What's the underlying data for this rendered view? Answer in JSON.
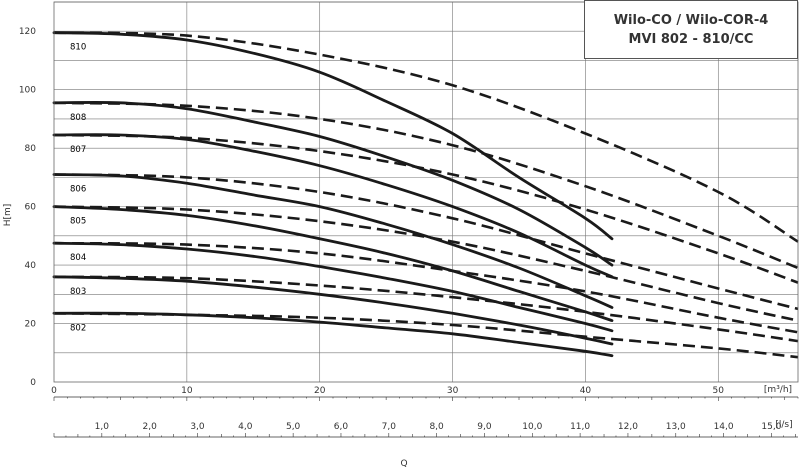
{
  "chart_data": {
    "type": "line",
    "title": [
      "Wilo-CO / Wilo-COR-4",
      "MVI 802 - 810/CC"
    ],
    "ylabel": "H[m]",
    "xlabel": "Q",
    "x_unit_top": "[m³/h]",
    "x_unit_bottom": "[l/s]",
    "xlim": [
      0,
      56
    ],
    "ylim": [
      0,
      130
    ],
    "grid": true,
    "y_ticks": [
      "0",
      "20",
      "40",
      "60",
      "80",
      "100",
      "120"
    ],
    "x_ticks_m3h": [
      "0",
      "10",
      "20",
      "30",
      "40",
      "50"
    ],
    "x_ticks_ls": [
      "1,0",
      "2,0",
      "3,0",
      "4,0",
      "5,0",
      "6,0",
      "7,0",
      "8,0",
      "9,0",
      "10,0",
      "11,0",
      "12,0",
      "13,0",
      "14,0",
      "15,0"
    ],
    "series": [
      {
        "name": "810",
        "solid": [
          [
            0,
            119.5
          ],
          [
            5,
            119
          ],
          [
            10,
            117
          ],
          [
            15,
            112.5
          ],
          [
            20,
            106
          ],
          [
            25,
            96
          ],
          [
            30,
            85
          ],
          [
            35,
            70
          ],
          [
            40,
            56
          ],
          [
            42,
            49
          ]
        ],
        "dashed": [
          [
            0,
            119.5
          ],
          [
            10,
            118.5
          ],
          [
            20,
            112
          ],
          [
            30,
            101.5
          ],
          [
            40,
            85
          ],
          [
            50,
            65
          ],
          [
            56,
            48
          ]
        ]
      },
      {
        "name": "808",
        "solid": [
          [
            0,
            95.5
          ],
          [
            5,
            95.5
          ],
          [
            10,
            93.5
          ],
          [
            15,
            89
          ],
          [
            20,
            84
          ],
          [
            25,
            77
          ],
          [
            30,
            69
          ],
          [
            35,
            59
          ],
          [
            40,
            46
          ],
          [
            42,
            40
          ]
        ],
        "dashed": [
          [
            0,
            95.5
          ],
          [
            10,
            94.5
          ],
          [
            20,
            90
          ],
          [
            30,
            81
          ],
          [
            40,
            67
          ],
          [
            50,
            50
          ],
          [
            56,
            39
          ]
        ]
      },
      {
        "name": "807",
        "solid": [
          [
            0,
            84.5
          ],
          [
            5,
            84.5
          ],
          [
            10,
            83
          ],
          [
            15,
            79
          ],
          [
            20,
            74
          ],
          [
            25,
            67.5
          ],
          [
            30,
            60
          ],
          [
            35,
            51
          ],
          [
            40,
            40
          ],
          [
            42,
            36
          ]
        ],
        "dashed": [
          [
            0,
            84.5
          ],
          [
            10,
            83.5
          ],
          [
            20,
            79
          ],
          [
            30,
            71
          ],
          [
            40,
            59
          ],
          [
            50,
            44
          ],
          [
            56,
            34
          ]
        ]
      },
      {
        "name": "806",
        "solid": [
          [
            0,
            71
          ],
          [
            5,
            70.5
          ],
          [
            10,
            68
          ],
          [
            15,
            64
          ],
          [
            20,
            60
          ],
          [
            25,
            54
          ],
          [
            30,
            47
          ],
          [
            35,
            39
          ],
          [
            40,
            29.5
          ],
          [
            42,
            25.5
          ]
        ],
        "dashed": [
          [
            0,
            71
          ],
          [
            10,
            70
          ],
          [
            20,
            65
          ],
          [
            30,
            56
          ],
          [
            40,
            44
          ],
          [
            50,
            32
          ],
          [
            56,
            25
          ]
        ]
      },
      {
        "name": "805",
        "solid": [
          [
            0,
            60
          ],
          [
            5,
            59
          ],
          [
            10,
            57
          ],
          [
            15,
            53.5
          ],
          [
            20,
            49
          ],
          [
            25,
            44
          ],
          [
            30,
            38
          ],
          [
            35,
            31
          ],
          [
            40,
            24
          ],
          [
            42,
            21
          ]
        ],
        "dashed": [
          [
            0,
            60
          ],
          [
            10,
            59
          ],
          [
            20,
            55
          ],
          [
            30,
            48
          ],
          [
            40,
            38
          ],
          [
            50,
            27
          ],
          [
            56,
            21
          ]
        ]
      },
      {
        "name": "804",
        "solid": [
          [
            0,
            47.5
          ],
          [
            5,
            47
          ],
          [
            10,
            45.5
          ],
          [
            15,
            43
          ],
          [
            20,
            39.5
          ],
          [
            25,
            35.5
          ],
          [
            30,
            31
          ],
          [
            35,
            25.5
          ],
          [
            40,
            20
          ],
          [
            42,
            17.5
          ]
        ],
        "dashed": [
          [
            0,
            47.5
          ],
          [
            10,
            47
          ],
          [
            20,
            44
          ],
          [
            30,
            38
          ],
          [
            40,
            31
          ],
          [
            50,
            22
          ],
          [
            56,
            17
          ]
        ]
      },
      {
        "name": "803",
        "solid": [
          [
            0,
            36
          ],
          [
            5,
            35.5
          ],
          [
            10,
            34.5
          ],
          [
            15,
            32.5
          ],
          [
            20,
            30
          ],
          [
            25,
            27
          ],
          [
            30,
            23.5
          ],
          [
            35,
            19.5
          ],
          [
            40,
            15
          ],
          [
            42,
            13
          ]
        ],
        "dashed": [
          [
            0,
            36
          ],
          [
            10,
            35.5
          ],
          [
            20,
            33
          ],
          [
            30,
            29
          ],
          [
            40,
            24
          ],
          [
            50,
            18
          ],
          [
            56,
            14
          ]
        ]
      },
      {
        "name": "802",
        "solid": [
          [
            0,
            23.5
          ],
          [
            5,
            23.5
          ],
          [
            10,
            23
          ],
          [
            15,
            22
          ],
          [
            20,
            20.5
          ],
          [
            25,
            18.5
          ],
          [
            30,
            16.5
          ],
          [
            35,
            13.5
          ],
          [
            40,
            10.5
          ],
          [
            42,
            9
          ]
        ],
        "dashed": [
          [
            0,
            23.5
          ],
          [
            10,
            23
          ],
          [
            20,
            22
          ],
          [
            30,
            19.5
          ],
          [
            40,
            15.5
          ],
          [
            50,
            11.5
          ],
          [
            56,
            8.5
          ]
        ]
      }
    ]
  }
}
